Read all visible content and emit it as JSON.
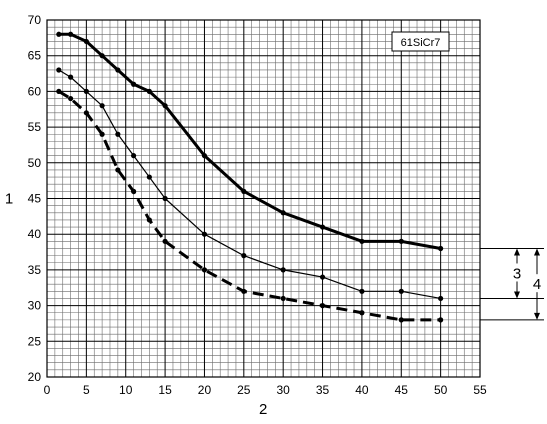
{
  "chart_data": {
    "type": "line",
    "title": "",
    "xlabel": "2",
    "ylabel": "1",
    "xlim": [
      0,
      55
    ],
    "ylim": [
      20,
      70
    ],
    "x_ticks": [
      0,
      5,
      10,
      15,
      20,
      25,
      30,
      35,
      40,
      45,
      50,
      55
    ],
    "y_ticks": [
      20,
      25,
      30,
      35,
      40,
      45,
      50,
      55,
      60,
      65,
      70
    ],
    "grid": "on (major and minor)",
    "legend_box": "61SiCr7",
    "legend_placement": "top-right",
    "series": [
      {
        "style": "thick-solid",
        "x": [
          1.5,
          3,
          5,
          7,
          9,
          11,
          13,
          15,
          20,
          25,
          30,
          35,
          40,
          45,
          50
        ],
        "y": [
          68,
          68,
          67,
          65,
          63,
          61,
          60,
          58,
          51,
          46,
          43,
          41,
          39,
          39,
          38
        ]
      },
      {
        "style": "thin-solid",
        "x": [
          1.5,
          3,
          5,
          7,
          9,
          11,
          13,
          15,
          20,
          25,
          30,
          35,
          40,
          45,
          50
        ],
        "y": [
          63,
          62,
          60,
          58,
          54,
          51,
          48,
          45,
          40,
          37,
          35,
          34,
          32,
          32,
          31
        ]
      },
      {
        "style": "thick-dashed",
        "x": [
          1.5,
          3,
          5,
          7,
          9,
          11,
          13,
          15,
          20,
          25,
          30,
          35,
          40,
          45,
          50
        ],
        "y": [
          60,
          59,
          57,
          54,
          49,
          46,
          42,
          39,
          35,
          32,
          31,
          30,
          29,
          28,
          28
        ]
      }
    ],
    "annotations": [
      {
        "label": "3",
        "from": 31,
        "to": 38
      },
      {
        "label": "4",
        "from": 28,
        "to": 38
      }
    ]
  }
}
